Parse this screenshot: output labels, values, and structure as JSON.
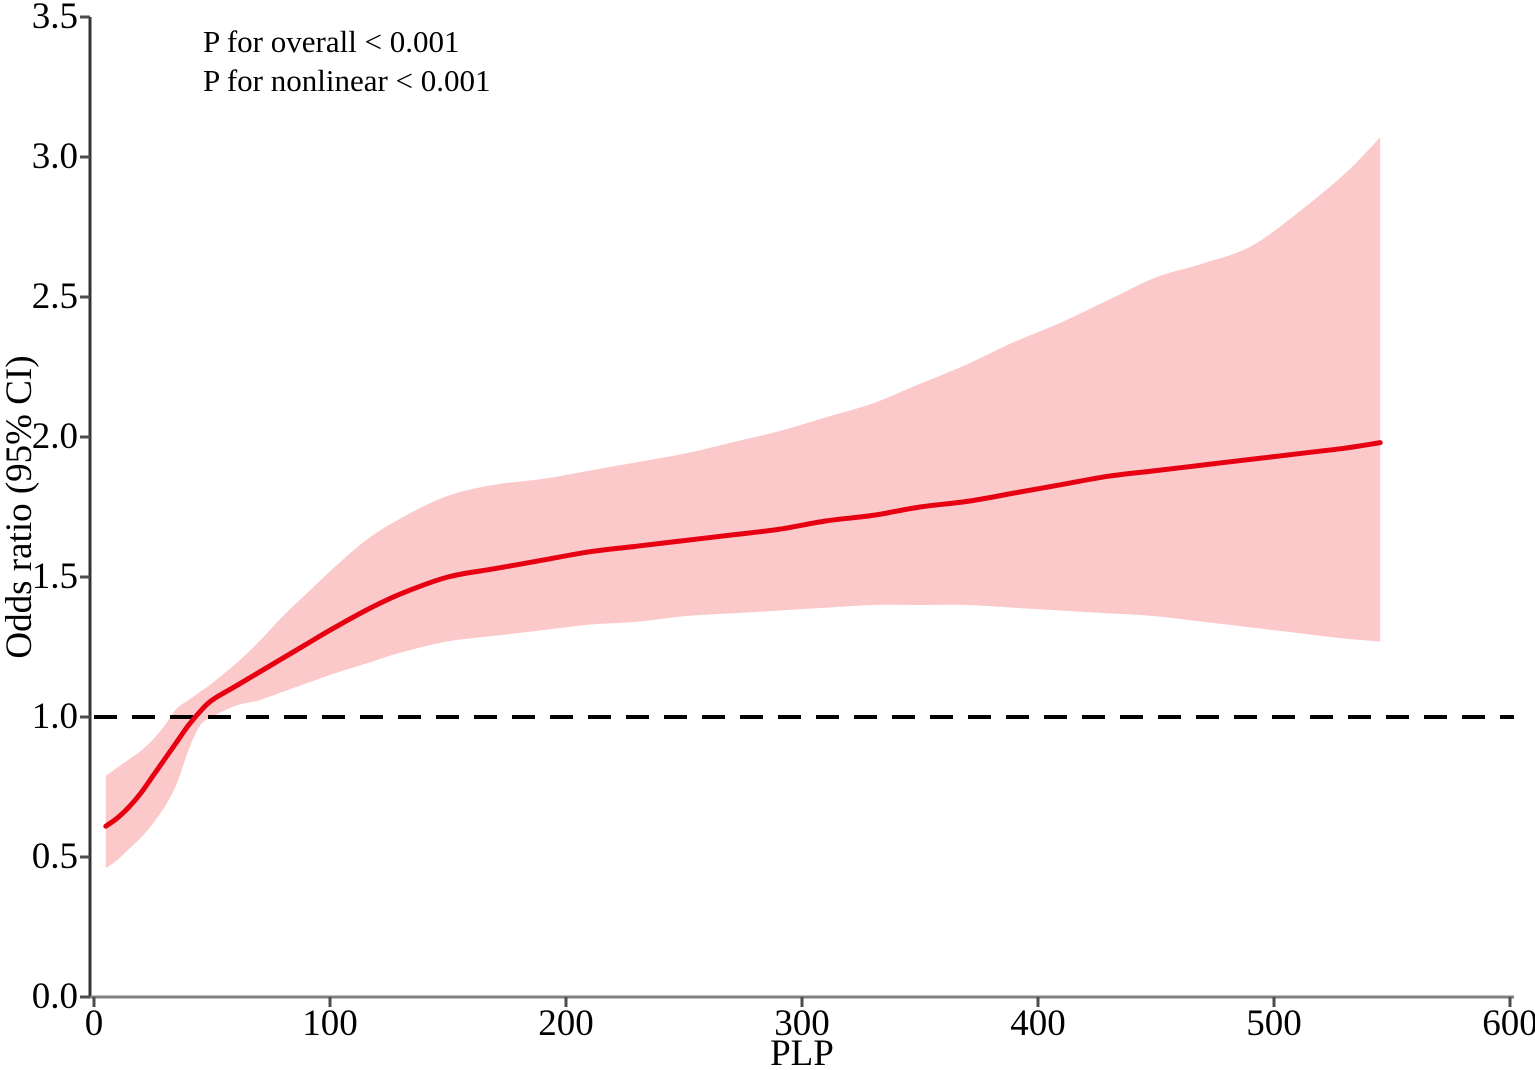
{
  "chart_data": {
    "type": "line",
    "title": "",
    "xlabel": "PLP",
    "ylabel": "Odds ratio (95% CI)",
    "xlim": [
      0,
      600
    ],
    "ylim": [
      0,
      3.5
    ],
    "x_ticks": [
      "0",
      "100",
      "200",
      "300",
      "400",
      "500",
      "600"
    ],
    "x_tick_values": [
      0,
      100,
      200,
      300,
      400,
      500,
      600
    ],
    "y_ticks": [
      "0.0",
      "0.5",
      "1.0",
      "1.5",
      "2.0",
      "2.5",
      "3.0",
      "3.5"
    ],
    "y_tick_values": [
      0,
      0.5,
      1.0,
      1.5,
      2.0,
      2.5,
      3.0,
      3.5
    ],
    "grid": false,
    "legend": false,
    "annotations": [
      "P for overall < 0.001",
      "P for nonlinear < 0.001"
    ],
    "reference_line": {
      "y": 1.0,
      "style": "dashed",
      "color": "#000000"
    },
    "x": [
      5,
      10,
      15,
      20,
      25,
      30,
      35,
      40,
      45,
      50,
      60,
      70,
      80,
      90,
      100,
      115,
      130,
      150,
      170,
      190,
      210,
      230,
      250,
      270,
      290,
      310,
      330,
      350,
      370,
      390,
      410,
      430,
      450,
      470,
      490,
      510,
      530,
      545
    ],
    "series": [
      {
        "name": "odds_ratio",
        "values": [
          0.61,
          0.64,
          0.68,
          0.73,
          0.79,
          0.85,
          0.91,
          0.97,
          1.02,
          1.06,
          1.11,
          1.16,
          1.21,
          1.26,
          1.31,
          1.38,
          1.44,
          1.5,
          1.53,
          1.56,
          1.59,
          1.61,
          1.63,
          1.65,
          1.67,
          1.7,
          1.72,
          1.75,
          1.77,
          1.8,
          1.83,
          1.86,
          1.88,
          1.9,
          1.92,
          1.94,
          1.96,
          1.98
        ]
      },
      {
        "name": "ci_lower",
        "values": [
          0.46,
          0.49,
          0.53,
          0.57,
          0.62,
          0.68,
          0.76,
          0.88,
          0.97,
          1.0,
          1.04,
          1.06,
          1.09,
          1.12,
          1.15,
          1.19,
          1.23,
          1.27,
          1.29,
          1.31,
          1.33,
          1.34,
          1.36,
          1.37,
          1.38,
          1.39,
          1.4,
          1.4,
          1.4,
          1.39,
          1.38,
          1.37,
          1.36,
          1.34,
          1.32,
          1.3,
          1.28,
          1.27
        ]
      },
      {
        "name": "ci_upper",
        "values": [
          0.79,
          0.82,
          0.85,
          0.88,
          0.92,
          0.97,
          1.03,
          1.06,
          1.09,
          1.12,
          1.19,
          1.27,
          1.36,
          1.44,
          1.52,
          1.63,
          1.71,
          1.79,
          1.83,
          1.85,
          1.88,
          1.91,
          1.94,
          1.98,
          2.02,
          2.07,
          2.12,
          2.19,
          2.26,
          2.34,
          2.41,
          2.49,
          2.57,
          2.62,
          2.68,
          2.8,
          2.94,
          3.07
        ]
      }
    ],
    "colors": {
      "curve": "#e60012",
      "band": "#fcc9ca",
      "reference": "#000000",
      "x_axis_line": "#7f7f7f",
      "y_axis_line": "#333333",
      "tick": "#4d4d4d",
      "text": "#000000"
    }
  }
}
